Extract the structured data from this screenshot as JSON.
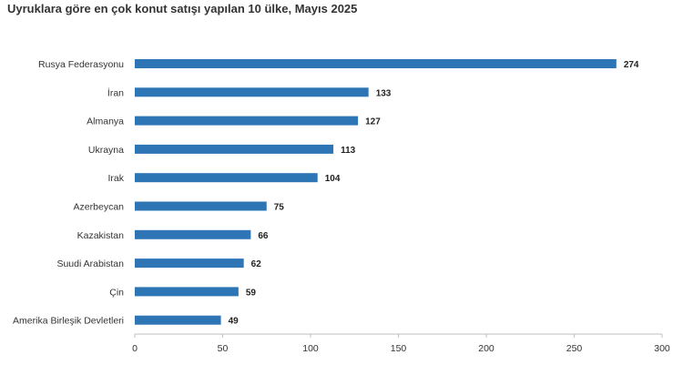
{
  "chart_data": {
    "type": "bar",
    "orientation": "horizontal",
    "title": "Uyruklara göre en çok konut satışı yapılan 10 ülke, Mayıs 2025",
    "categories": [
      "Rusya Federasyonu",
      "İran",
      "Almanya",
      "Ukrayna",
      "Irak",
      "Azerbeycan",
      "Kazakistan",
      "Suudi Arabistan",
      "Çin",
      "Amerika Birleşik Devletleri"
    ],
    "values": [
      274,
      133,
      127,
      113,
      104,
      75,
      66,
      62,
      59,
      49
    ],
    "xlim": [
      0,
      300
    ],
    "xticks": [
      0,
      50,
      100,
      150,
      200,
      250,
      300
    ],
    "grid": false,
    "bar_color": "#2e75b6",
    "axis_color": "#bfbfbf",
    "text_color": "#333333"
  }
}
